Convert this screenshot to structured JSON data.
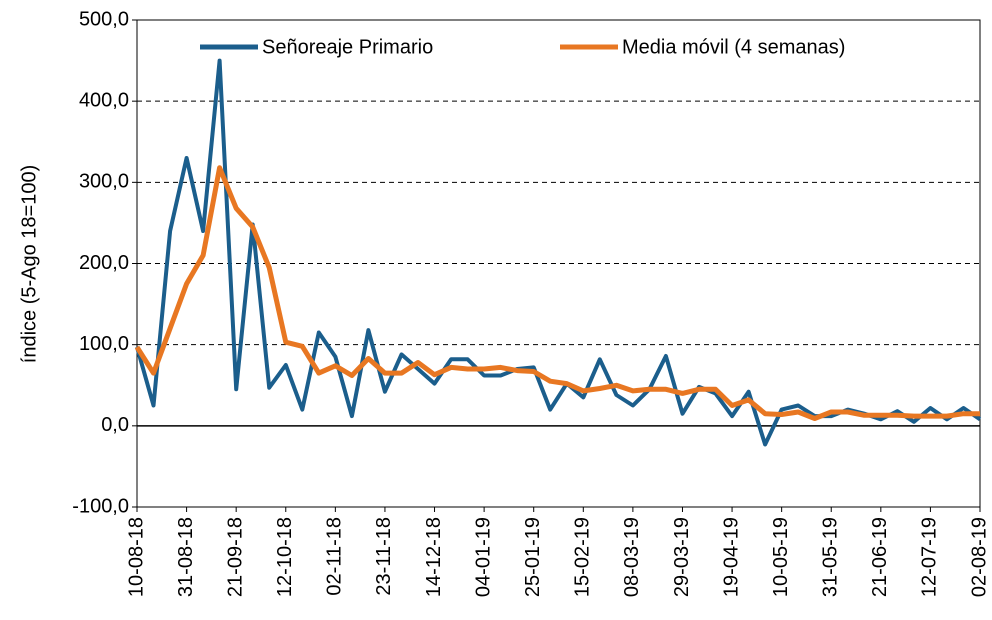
{
  "chart_data": {
    "type": "line",
    "y_label": "índice (5-Ago 18=100)",
    "categories": [
      "10-08-18",
      null,
      null,
      "31-08-18",
      null,
      null,
      "21-09-18",
      null,
      null,
      "12-10-18",
      null,
      null,
      "02-11-18",
      null,
      null,
      "23-11-18",
      null,
      null,
      "14-12-18",
      null,
      null,
      "04-01-19",
      null,
      null,
      "25-01-19",
      null,
      null,
      "15-02-19",
      null,
      null,
      "08-03-19",
      null,
      null,
      "29-03-19",
      null,
      null,
      "19-04-19",
      null,
      null,
      "10-05-19",
      null,
      null,
      "31-05-19",
      null,
      null,
      "21-06-19",
      null,
      null,
      "12-07-19",
      null,
      null,
      "02-08-19"
    ],
    "series": [
      {
        "name": "Señoreaje Primario",
        "color": "#1b5e8c",
        "values": [
          97,
          25,
          240,
          330,
          240,
          450,
          45,
          248,
          47,
          75,
          20,
          115,
          85,
          12,
          118,
          42,
          88,
          70,
          52,
          82,
          82,
          62,
          62,
          70,
          72,
          20,
          52,
          35,
          82,
          38,
          25,
          45,
          86,
          15,
          48,
          40,
          12,
          42,
          -23,
          20,
          25,
          12,
          12,
          20,
          15,
          8,
          18,
          5,
          22,
          8,
          22,
          8
        ]
      },
      {
        "name": "Media móvil (4 semanas)",
        "color": "#e87722",
        "values": [
          97,
          65,
          120,
          175,
          210,
          318,
          268,
          245,
          195,
          103,
          98,
          65,
          74,
          62,
          83,
          65,
          65,
          78,
          63,
          72,
          70,
          70,
          72,
          68,
          67,
          55,
          52,
          43,
          46,
          50,
          43,
          45,
          45,
          40,
          45,
          45,
          25,
          32,
          15,
          14,
          17,
          9,
          17,
          17,
          13,
          13,
          13,
          12,
          12,
          12,
          15,
          15
        ]
      }
    ],
    "ylim": [
      -100,
      500
    ],
    "yticks": [
      {
        "value": -100,
        "label": "-100,0"
      },
      {
        "value": 0,
        "label": "0,0"
      },
      {
        "value": 100,
        "label": "100,0"
      },
      {
        "value": 200,
        "label": "200,0"
      },
      {
        "value": 300,
        "label": "300,0"
      },
      {
        "value": 400,
        "label": "400,0"
      },
      {
        "value": 500,
        "label": "500,0"
      }
    ],
    "grid": true,
    "legend": "top"
  }
}
